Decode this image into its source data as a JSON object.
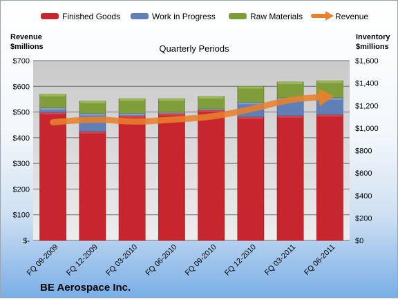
{
  "chart_data": {
    "type": "bar",
    "subtitle": "Quarterly Periods",
    "company": "BE Aerospace Inc.",
    "left_axis_label": [
      "Revenue",
      "$millions"
    ],
    "right_axis_label": [
      "Inventory",
      "$millions"
    ],
    "left_axis_ticks": [
      "$-",
      "$100",
      "$200",
      "$300",
      "$400",
      "$500",
      "$600",
      "$700"
    ],
    "right_axis_ticks": [
      "$0",
      "$200",
      "$400",
      "$600",
      "$800",
      "$1,000",
      "$1,200",
      "$1,400",
      "$1,600"
    ],
    "left_ylim": [
      0,
      700
    ],
    "right_ylim": [
      0,
      1600
    ],
    "categories": [
      "FQ 09-2009",
      "FQ 12-2009",
      "FQ 03-2010",
      "FQ 06-2010",
      "FQ 09-2010",
      "FQ 12-2010",
      "FQ 03-2011",
      "FQ 06-2011"
    ],
    "series": [
      {
        "name": "Finished Goods",
        "axis": "right",
        "color": "#c8262e",
        "values": [
          1140,
          970,
          1110,
          1130,
          1160,
          1100,
          1110,
          1120
        ]
      },
      {
        "name": "Work in Progress",
        "axis": "right",
        "color": "#5f7fb6",
        "values": [
          40,
          160,
          20,
          10,
          10,
          130,
          160,
          150
        ]
      },
      {
        "name": "Raw Materials",
        "axis": "right",
        "color": "#7f9d3a",
        "values": [
          120,
          110,
          130,
          120,
          110,
          140,
          140,
          150
        ]
      },
      {
        "name": "Revenue",
        "axis": "left",
        "type": "line",
        "color": "#e8812d",
        "values": [
          460,
          475,
          460,
          470,
          480,
          510,
          550,
          560
        ]
      }
    ],
    "legend_position": "top",
    "grid": true
  }
}
